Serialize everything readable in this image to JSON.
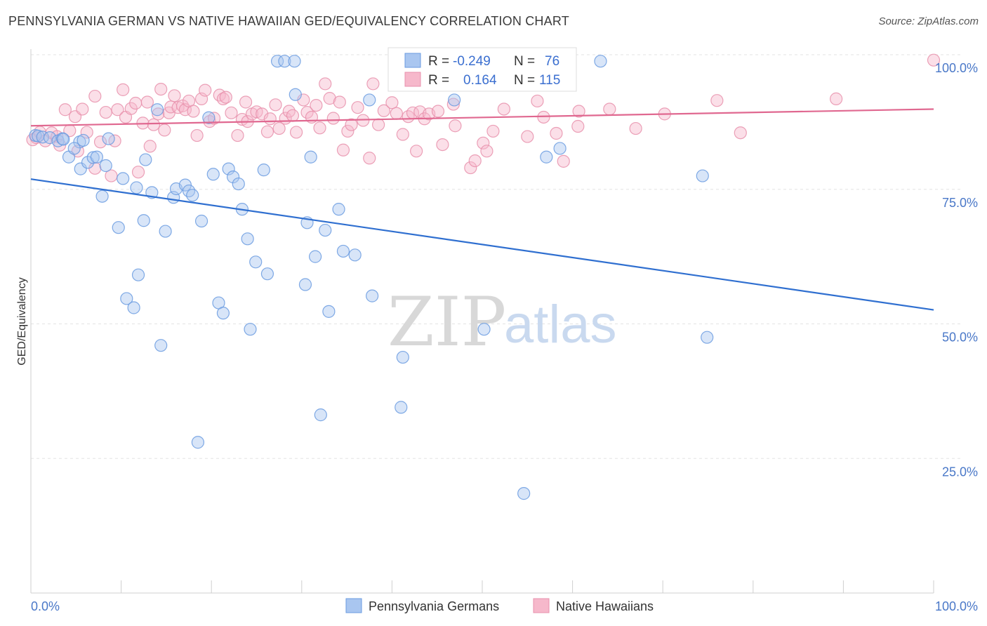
{
  "title": "PENNSYLVANIA GERMAN VS NATIVE HAWAIIAN GED/EQUIVALENCY CORRELATION CHART",
  "source": "Source: ZipAtlas.com",
  "watermark": {
    "zip": "ZIP",
    "atlas": "atlas"
  },
  "colors": {
    "blue_fill": "#a9c6f0",
    "blue_stroke": "#6a9be0",
    "blue_line": "#2f6fd0",
    "pink_fill": "#f6b8cb",
    "pink_stroke": "#e890ac",
    "pink_line": "#e06890",
    "tick_text": "#4a78c8",
    "grid": "#e3e3e3"
  },
  "legend": {
    "r_label": "R =",
    "n_label": "N =",
    "blue": {
      "r": "-0.249",
      "n": "76"
    },
    "pink": {
      "r": "0.164",
      "n": "115"
    }
  },
  "chart_data": {
    "type": "scatter",
    "xlabel": "",
    "ylabel": "GED/Equivalency",
    "xlim": [
      0,
      100
    ],
    "ylim": [
      0,
      100
    ],
    "x_tick_labels": [
      {
        "value": 0,
        "label": "0.0%"
      },
      {
        "value": 100,
        "label": "100.0%"
      }
    ],
    "y_tick_labels": [
      {
        "value": 100,
        "label": "100.0%"
      },
      {
        "value": 75,
        "label": "75.0%"
      },
      {
        "value": 50,
        "label": "50.0%"
      },
      {
        "value": 25,
        "label": "25.0%"
      }
    ],
    "grid": "horizontal dashed",
    "legend_position": "top-center",
    "series": [
      {
        "name": "Pennsylvania Germans",
        "color": "#6a9be0",
        "trend": {
          "x": [
            0,
            100
          ],
          "y": [
            76.9,
            52.6
          ]
        },
        "points": [
          [
            0.5,
            85
          ],
          [
            0.8,
            84.9
          ],
          [
            1.3,
            84.7
          ],
          [
            2.1,
            84.6
          ],
          [
            3.0,
            84.0
          ],
          [
            3.5,
            84.4
          ],
          [
            3.6,
            84.3
          ],
          [
            4.2,
            81.0
          ],
          [
            5.4,
            83.8
          ],
          [
            5.8,
            84.1
          ],
          [
            4.8,
            82.6
          ],
          [
            5.5,
            78.8
          ],
          [
            6.3,
            80.0
          ],
          [
            6.9,
            80.9
          ],
          [
            7.3,
            81.0
          ],
          [
            8.3,
            79.4
          ],
          [
            8.6,
            84.4
          ],
          [
            7.9,
            73.7
          ],
          [
            10.2,
            77.0
          ],
          [
            9.7,
            67.9
          ],
          [
            10.6,
            54.7
          ],
          [
            11.4,
            53.0
          ],
          [
            11.7,
            75.3
          ],
          [
            11.9,
            59.1
          ],
          [
            12.7,
            80.5
          ],
          [
            12.5,
            69.2
          ],
          [
            13.4,
            74.4
          ],
          [
            14.0,
            89.8
          ],
          [
            14.4,
            46.0
          ],
          [
            14.9,
            67.2
          ],
          [
            15.8,
            73.5
          ],
          [
            16.1,
            75.1
          ],
          [
            17.1,
            75.8
          ],
          [
            17.5,
            74.7
          ],
          [
            17.9,
            73.9
          ],
          [
            18.5,
            28.0
          ],
          [
            18.9,
            69.1
          ],
          [
            19.7,
            88.3
          ],
          [
            20.2,
            77.8
          ],
          [
            20.8,
            53.9
          ],
          [
            21.3,
            52.0
          ],
          [
            21.9,
            78.8
          ],
          [
            22.4,
            77.3
          ],
          [
            23.0,
            76.0
          ],
          [
            23.4,
            71.3
          ],
          [
            24.0,
            65.8
          ],
          [
            24.3,
            49.0
          ],
          [
            24.9,
            61.5
          ],
          [
            25.8,
            78.6
          ],
          [
            26.2,
            59.3
          ],
          [
            27.3,
            98.8
          ],
          [
            28.1,
            98.8
          ],
          [
            29.2,
            98.8
          ],
          [
            29.3,
            92.6
          ],
          [
            30.4,
            57.3
          ],
          [
            30.6,
            68.8
          ],
          [
            31.0,
            81.0
          ],
          [
            31.5,
            62.5
          ],
          [
            32.1,
            33.1
          ],
          [
            32.6,
            67.4
          ],
          [
            33.0,
            52.3
          ],
          [
            34.1,
            71.3
          ],
          [
            34.6,
            63.5
          ],
          [
            35.9,
            62.8
          ],
          [
            37.5,
            91.6
          ],
          [
            37.8,
            55.2
          ],
          [
            41.0,
            34.5
          ],
          [
            41.2,
            43.8
          ],
          [
            46.9,
            91.6
          ],
          [
            50.2,
            49.0
          ],
          [
            54.6,
            18.5
          ],
          [
            57.1,
            81.0
          ],
          [
            58.6,
            82.6
          ],
          [
            63.1,
            98.8
          ],
          [
            74.4,
            77.5
          ],
          [
            74.9,
            47.5
          ]
        ]
      },
      {
        "name": "Native Hawaiians",
        "color": "#e890ac",
        "trend": {
          "x": [
            0,
            100
          ],
          "y": [
            86.8,
            89.9
          ]
        },
        "points": [
          [
            0.2,
            84.2
          ],
          [
            0.6,
            84.6
          ],
          [
            1.0,
            85.6
          ],
          [
            1.6,
            84.0
          ],
          [
            2.3,
            85.5
          ],
          [
            2.9,
            84.8
          ],
          [
            3.2,
            83.2
          ],
          [
            3.8,
            89.8
          ],
          [
            4.3,
            85.9
          ],
          [
            4.9,
            88.5
          ],
          [
            5.2,
            82.1
          ],
          [
            5.7,
            89.9
          ],
          [
            6.2,
            85.6
          ],
          [
            7.1,
            78.9
          ],
          [
            7.1,
            92.3
          ],
          [
            7.7,
            83.8
          ],
          [
            8.3,
            89.3
          ],
          [
            8.9,
            77.5
          ],
          [
            9.3,
            84.0
          ],
          [
            9.6,
            89.8
          ],
          [
            10.2,
            93.5
          ],
          [
            10.5,
            88.4
          ],
          [
            11.1,
            90.0
          ],
          [
            11.6,
            91.0
          ],
          [
            11.9,
            78.2
          ],
          [
            12.4,
            87.3
          ],
          [
            12.9,
            91.2
          ],
          [
            13.2,
            83.0
          ],
          [
            13.6,
            87.0
          ],
          [
            14.1,
            89.0
          ],
          [
            14.4,
            93.6
          ],
          [
            14.8,
            86.0
          ],
          [
            15.3,
            89.2
          ],
          [
            15.5,
            90.3
          ],
          [
            15.9,
            92.4
          ],
          [
            16.3,
            90.2
          ],
          [
            16.8,
            90.5
          ],
          [
            17.1,
            89.8
          ],
          [
            17.5,
            91.4
          ],
          [
            18.0,
            89.5
          ],
          [
            18.4,
            85.0
          ],
          [
            18.9,
            91.8
          ],
          [
            19.3,
            93.4
          ],
          [
            19.8,
            87.6
          ],
          [
            20.3,
            88.2
          ],
          [
            20.9,
            92.5
          ],
          [
            21.3,
            91.8
          ],
          [
            21.6,
            92.1
          ],
          [
            22.2,
            89.2
          ],
          [
            22.9,
            85.0
          ],
          [
            23.4,
            88.0
          ],
          [
            23.8,
            91.2
          ],
          [
            24.0,
            87.6
          ],
          [
            24.5,
            89.0
          ],
          [
            25.0,
            89.4
          ],
          [
            25.6,
            89.0
          ],
          [
            26.2,
            85.7
          ],
          [
            26.5,
            88.1
          ],
          [
            27.1,
            90.7
          ],
          [
            27.5,
            86.3
          ],
          [
            28.2,
            88.2
          ],
          [
            28.6,
            89.5
          ],
          [
            29.0,
            88.7
          ],
          [
            29.4,
            85.6
          ],
          [
            30.2,
            91.6
          ],
          [
            30.6,
            89.3
          ],
          [
            31.1,
            88.4
          ],
          [
            31.6,
            90.6
          ],
          [
            32.0,
            86.4
          ],
          [
            32.6,
            94.6
          ],
          [
            33.1,
            91.9
          ],
          [
            33.5,
            88.2
          ],
          [
            34.2,
            91.2
          ],
          [
            34.6,
            82.3
          ],
          [
            35.1,
            85.8
          ],
          [
            35.5,
            87.0
          ],
          [
            36.2,
            90.2
          ],
          [
            36.8,
            87.8
          ],
          [
            37.5,
            80.8
          ],
          [
            37.9,
            94.6
          ],
          [
            38.5,
            87.0
          ],
          [
            39.1,
            89.6
          ],
          [
            40.0,
            91.1
          ],
          [
            40.5,
            89.1
          ],
          [
            41.2,
            85.2
          ],
          [
            41.8,
            88.5
          ],
          [
            42.3,
            89.2
          ],
          [
            42.7,
            82.1
          ],
          [
            43.1,
            89.4
          ],
          [
            43.6,
            88.1
          ],
          [
            44.1,
            89.0
          ],
          [
            45.1,
            89.5
          ],
          [
            45.6,
            83.3
          ],
          [
            46.8,
            90.8
          ],
          [
            47.0,
            86.8
          ],
          [
            48.7,
            79.0
          ],
          [
            49.2,
            80.3
          ],
          [
            50.1,
            83.6
          ],
          [
            50.5,
            82.1
          ],
          [
            51.2,
            85.8
          ],
          [
            52.4,
            89.9
          ],
          [
            55.0,
            84.8
          ],
          [
            56.1,
            91.4
          ],
          [
            56.8,
            88.4
          ],
          [
            57.5,
            95.2
          ],
          [
            58.2,
            85.4
          ],
          [
            59.0,
            80.2
          ],
          [
            60.7,
            89.5
          ],
          [
            60.6,
            86.7
          ],
          [
            64.1,
            89.9
          ],
          [
            67.0,
            86.3
          ],
          [
            70.2,
            89.0
          ],
          [
            76.0,
            91.5
          ],
          [
            78.6,
            85.5
          ],
          [
            89.2,
            91.8
          ],
          [
            100.0,
            99.0
          ]
        ]
      }
    ]
  }
}
